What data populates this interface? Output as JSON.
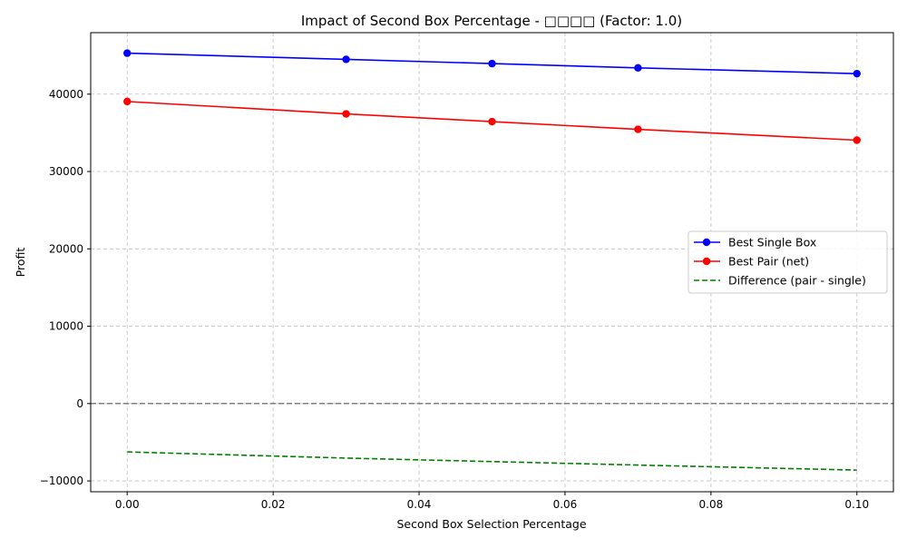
{
  "chart_data": {
    "type": "line",
    "title": "Impact of Second Box Percentage - □□□□ (Factor: 1.0)",
    "xlabel": "Second Box Selection Percentage",
    "ylabel": "Profit",
    "xlim": [
      -0.005,
      0.105
    ],
    "ylim": [
      -11400,
      47950
    ],
    "xticks": [
      0.0,
      0.02,
      0.04,
      0.06,
      0.08,
      0.1
    ],
    "xtick_labels": [
      "0.00",
      "0.02",
      "0.04",
      "0.06",
      "0.08",
      "0.10"
    ],
    "yticks": [
      -10000,
      0,
      10000,
      20000,
      30000,
      40000
    ],
    "ytick_labels": [
      "−10000",
      "0",
      "10000",
      "20000",
      "30000",
      "40000"
    ],
    "grid": true,
    "reference_line": {
      "y": 0,
      "color": "#808080",
      "style": "dashed"
    },
    "legend_position": "center-right",
    "x": [
      0.0,
      0.03,
      0.05,
      0.07,
      0.1
    ],
    "series": [
      {
        "name": "Best Single Box",
        "color": "#0000ff",
        "style": "solid",
        "marker": "circle",
        "values": [
          45300,
          44500,
          43950,
          43400,
          42650
        ]
      },
      {
        "name": "Best Pair (net)",
        "color": "#ff0000",
        "style": "solid",
        "marker": "circle",
        "values": [
          39050,
          37450,
          36450,
          35450,
          34050
        ]
      },
      {
        "name": "Difference (pair - single)",
        "color": "#008000",
        "style": "dashed",
        "marker": "none",
        "values": [
          -6250,
          -7050,
          -7500,
          -7950,
          -8600
        ]
      }
    ]
  }
}
